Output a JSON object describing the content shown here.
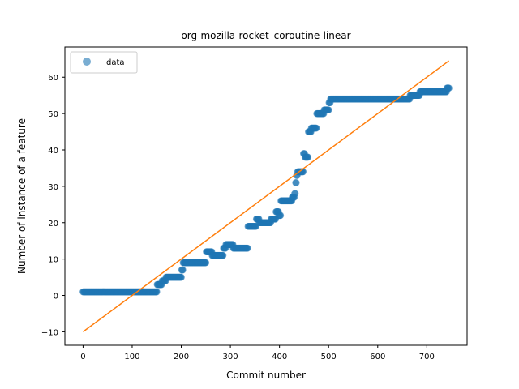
{
  "chart_data": {
    "type": "scatter",
    "title": "org-mozilla-rocket_coroutine-linear",
    "xlabel": "Commit number",
    "ylabel": "Number of instance of a feature",
    "xlim": [
      -37,
      782
    ],
    "ylim": [
      -13.7,
      68.3
    ],
    "xticks": [
      0,
      100,
      200,
      300,
      400,
      500,
      600,
      700
    ],
    "yticks": [
      -10,
      0,
      10,
      20,
      30,
      40,
      50,
      60
    ],
    "grid": false,
    "legend": {
      "placement": "top-left",
      "entries": [
        "data"
      ]
    },
    "colors": {
      "data": "#1f77b4",
      "fit": "#ff7f0e"
    },
    "series": [
      {
        "name": "data",
        "kind": "scatter",
        "segments": [
          {
            "x_start": 0,
            "x_end": 150,
            "y": 1
          },
          {
            "x_start": 151,
            "x_end": 160,
            "y": 3
          },
          {
            "x_start": 161,
            "x_end": 168,
            "y": 4
          },
          {
            "x_start": 169,
            "x_end": 200,
            "y": 5
          },
          {
            "x_start": 201,
            "x_end": 203,
            "y": 7
          },
          {
            "x_start": 204,
            "x_end": 250,
            "y": 9
          },
          {
            "x_start": 251,
            "x_end": 262,
            "y": 12
          },
          {
            "x_start": 263,
            "x_end": 285,
            "y": 11
          },
          {
            "x_start": 286,
            "x_end": 290,
            "y": 13
          },
          {
            "x_start": 291,
            "x_end": 305,
            "y": 14
          },
          {
            "x_start": 306,
            "x_end": 335,
            "y": 13
          },
          {
            "x_start": 336,
            "x_end": 352,
            "y": 19
          },
          {
            "x_start": 353,
            "x_end": 358,
            "y": 21
          },
          {
            "x_start": 359,
            "x_end": 382,
            "y": 20
          },
          {
            "x_start": 383,
            "x_end": 392,
            "y": 21
          },
          {
            "x_start": 393,
            "x_end": 398,
            "y": 23
          },
          {
            "x_start": 399,
            "x_end": 402,
            "y": 22
          },
          {
            "x_start": 403,
            "x_end": 425,
            "y": 26
          },
          {
            "x_start": 426,
            "x_end": 430,
            "y": 27
          },
          {
            "x_start": 431,
            "x_end": 432,
            "y": 28
          },
          {
            "x_start": 433,
            "x_end": 434,
            "y": 31
          },
          {
            "x_start": 435,
            "x_end": 436,
            "y": 33
          },
          {
            "x_start": 437,
            "x_end": 448,
            "y": 34
          },
          {
            "x_start": 449,
            "x_end": 451,
            "y": 39
          },
          {
            "x_start": 452,
            "x_end": 458,
            "y": 38
          },
          {
            "x_start": 459,
            "x_end": 464,
            "y": 45
          },
          {
            "x_start": 465,
            "x_end": 475,
            "y": 46
          },
          {
            "x_start": 476,
            "x_end": 490,
            "y": 50
          },
          {
            "x_start": 491,
            "x_end": 500,
            "y": 51
          },
          {
            "x_start": 501,
            "x_end": 503,
            "y": 53
          },
          {
            "x_start": 504,
            "x_end": 665,
            "y": 54
          },
          {
            "x_start": 666,
            "x_end": 685,
            "y": 55
          },
          {
            "x_start": 686,
            "x_end": 740,
            "y": 56
          },
          {
            "x_start": 741,
            "x_end": 745,
            "y": 57
          }
        ]
      },
      {
        "name": "",
        "kind": "line",
        "x": [
          0,
          745
        ],
        "y": [
          -10,
          64.5
        ]
      }
    ]
  }
}
